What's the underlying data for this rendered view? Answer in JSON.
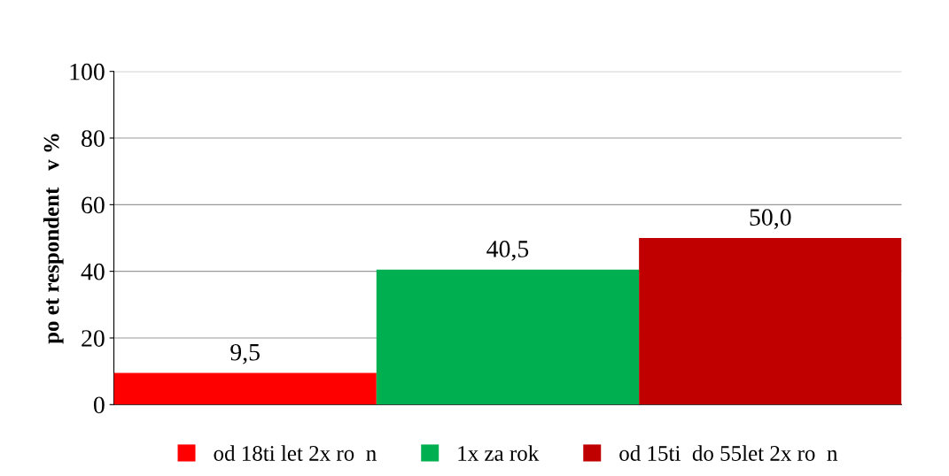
{
  "chart_data": {
    "type": "bar",
    "ylabel": "po et respondent   v %",
    "categories": [
      null,
      null,
      null
    ],
    "series": [
      {
        "name": "od 18ti let 2x ro  n",
        "color": "#ff0000",
        "values": [
          9.5,
          null,
          null
        ],
        "value_labels": [
          "9,5",
          null,
          null
        ]
      },
      {
        "name": "1x za rok",
        "color": "#00b050",
        "values": [
          null,
          40.5,
          null
        ],
        "value_labels": [
          null,
          "40,5",
          null
        ]
      },
      {
        "name": "od 15ti  do 55let 2x ro  n",
        "color": "#c00000",
        "values": [
          null,
          null,
          50.0
        ],
        "value_labels": [
          null,
          null,
          "50,0"
        ]
      }
    ],
    "ylim": [
      0,
      100
    ],
    "yticks": [
      0,
      20,
      40,
      60,
      80,
      100
    ],
    "grid": "y",
    "legend": "bottom"
  }
}
